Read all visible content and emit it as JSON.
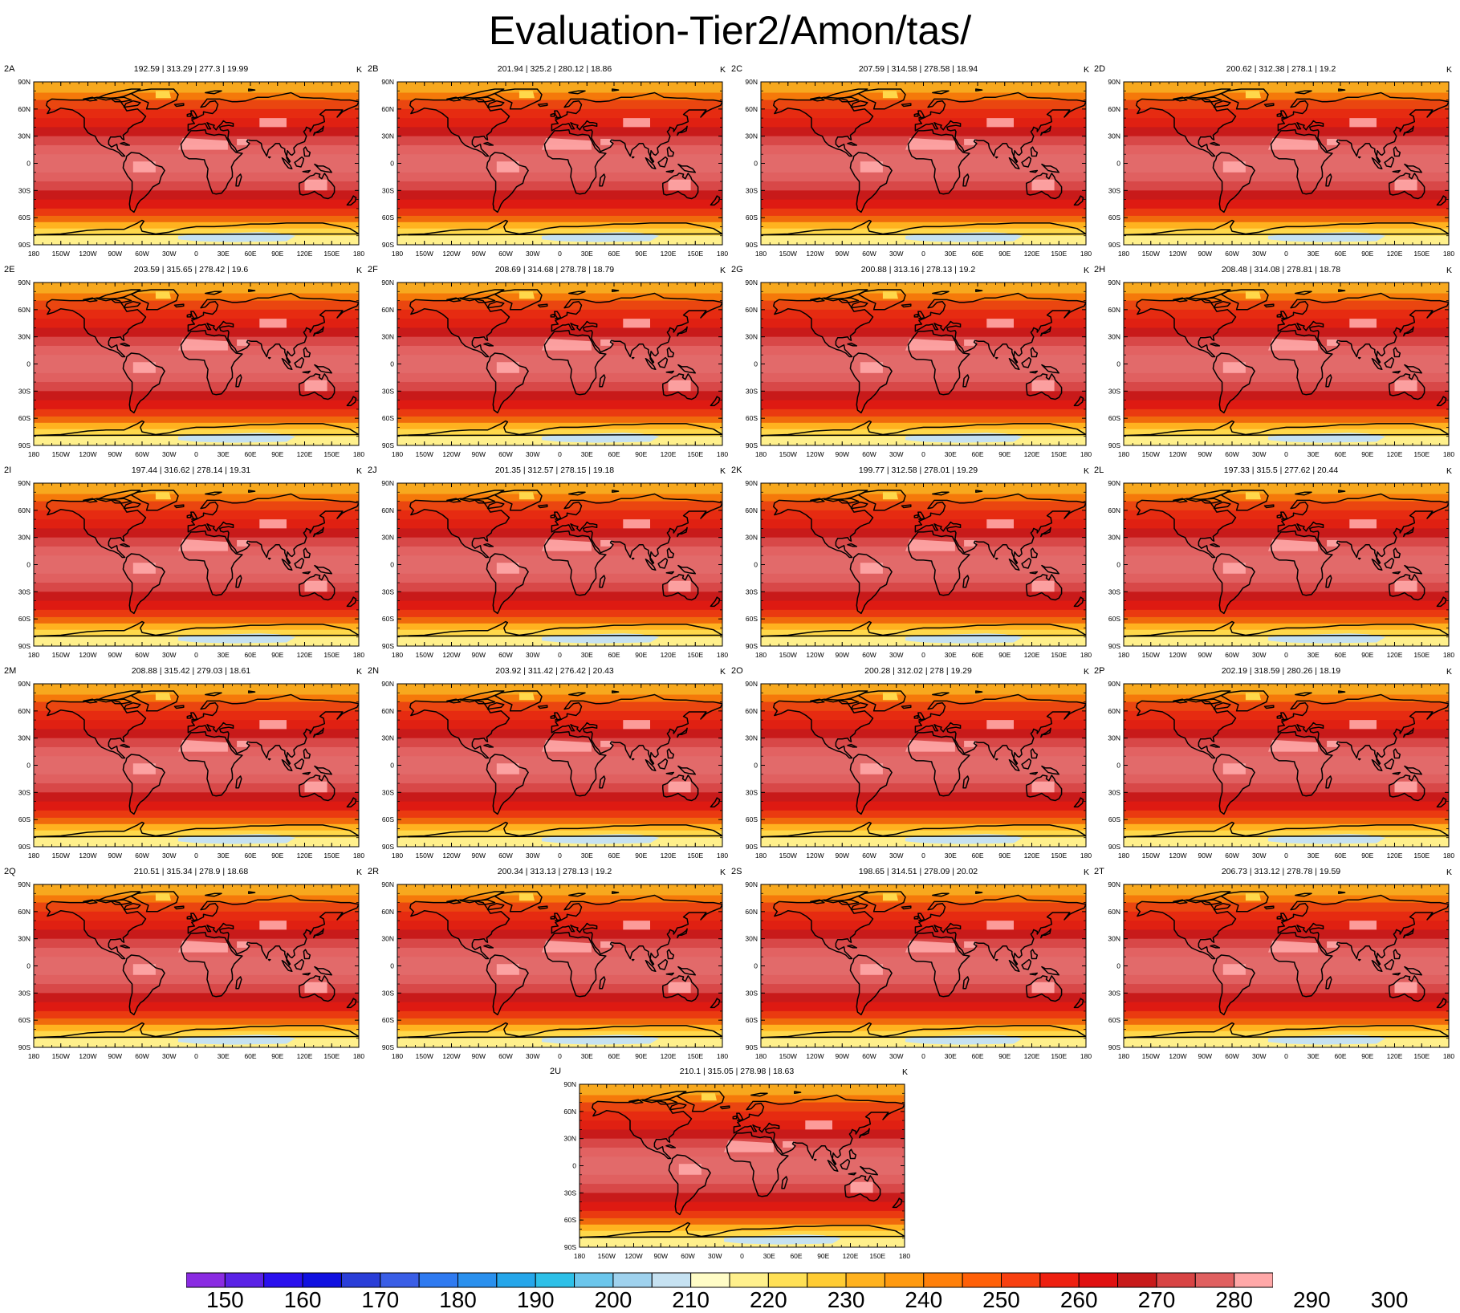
{
  "title": "Evaluation-Tier2/Amon/tas/",
  "units": "K",
  "lat_labels": [
    "90N",
    "60N",
    "30N",
    "0",
    "30S",
    "60S",
    "90S"
  ],
  "lon_labels": [
    "180",
    "150W",
    "120W",
    "90W",
    "60W",
    "30W",
    "0",
    "30E",
    "60E",
    "90E",
    "120E",
    "150E",
    "180"
  ],
  "panels": [
    {
      "id": "2A",
      "stats": "192.59 | 313.29 | 277.3 | 19.99"
    },
    {
      "id": "2B",
      "stats": "201.94 | 325.2 | 280.12 | 18.86"
    },
    {
      "id": "2C",
      "stats": "207.59 | 314.58 | 278.58 | 18.94"
    },
    {
      "id": "2D",
      "stats": "200.62 | 312.38 | 278.1 | 19.2"
    },
    {
      "id": "2E",
      "stats": "203.59 | 315.65 | 278.42 | 19.6"
    },
    {
      "id": "2F",
      "stats": "208.69 | 314.68 | 278.78 | 18.79"
    },
    {
      "id": "2G",
      "stats": "200.88 | 313.16 | 278.13 | 19.2"
    },
    {
      "id": "2H",
      "stats": "208.48 | 314.08 | 278.81 | 18.78"
    },
    {
      "id": "2I",
      "stats": "197.44 | 316.62 | 278.14 | 19.31"
    },
    {
      "id": "2J",
      "stats": "201.35 | 312.57 | 278.15 | 19.18"
    },
    {
      "id": "2K",
      "stats": "199.77 | 312.58 | 278.01 | 19.29"
    },
    {
      "id": "2L",
      "stats": "197.33 | 315.5 | 277.62 | 20.44"
    },
    {
      "id": "2M",
      "stats": "208.88 | 315.42 | 279.03 | 18.61"
    },
    {
      "id": "2N",
      "stats": "203.92 | 311.42 | 276.42 | 20.43"
    },
    {
      "id": "2O",
      "stats": "200.28 | 312.02 | 278 | 19.29"
    },
    {
      "id": "2P",
      "stats": "202.19 | 318.59 | 280.26 | 18.19"
    },
    {
      "id": "2Q",
      "stats": "210.51 | 315.34 | 278.9 | 18.68"
    },
    {
      "id": "2R",
      "stats": "200.34 | 313.13 | 278.13 | 19.2"
    },
    {
      "id": "2S",
      "stats": "198.65 | 314.51 | 278.09 | 20.02"
    },
    {
      "id": "2T",
      "stats": "206.73 | 313.12 | 278.78 | 19.59"
    },
    {
      "id": "2U",
      "stats": "210.1 | 315.05 | 278.98 | 18.63"
    }
  ],
  "colorbar": {
    "labels": [
      "150",
      "160",
      "170",
      "180",
      "190",
      "200",
      "210",
      "220",
      "230",
      "240",
      "250",
      "260",
      "270",
      "280",
      "290",
      "300"
    ],
    "colors": [
      "#8a2be2",
      "#5a22e6",
      "#2a10ee",
      "#1010e0",
      "#2a3ed8",
      "#3a5ee6",
      "#2f7af0",
      "#2a90ee",
      "#25a6ea",
      "#2dc0e8",
      "#6bc6ec",
      "#9fd2ee",
      "#c6e2f2",
      "#fffcc6",
      "#fff08c",
      "#ffe055",
      "#ffcc33",
      "#ffb21f",
      "#ff9a10",
      "#ff800a",
      "#ff6008",
      "#f84010",
      "#ee2010",
      "#e01010",
      "#c81a1a",
      "#d84444",
      "#e06060",
      "#ffa8a8"
    ]
  }
}
